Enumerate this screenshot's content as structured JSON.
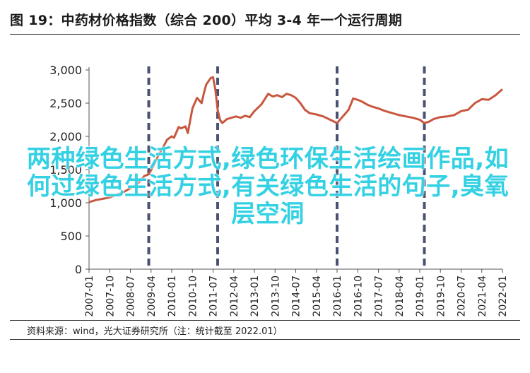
{
  "header": {
    "title": "图 19：中药材价格指数（综合 200）平均 3-4 年一个运行周期"
  },
  "footer": {
    "source": "资料来源：wind，光大证券研究所（注：统计截至 2022.01）"
  },
  "overlay": {
    "text": "两种绿色生活方式,绿色环保生活绘画作品,如何过绿色生活方式,有关绿色生活的句子,臭氧层空洞"
  },
  "chart_data": {
    "type": "line",
    "title": "图 19：中药材价格指数（综合 200）平均 3-4 年一个运行周期",
    "xlabel": "",
    "ylabel": "",
    "ylim": [
      0,
      3000
    ],
    "yticks": [
      "0",
      "500",
      "1,000",
      "1,500",
      "2,000",
      "2,500",
      "3,000"
    ],
    "ytick_values": [
      0,
      500,
      1000,
      1500,
      2000,
      2500,
      3000
    ],
    "xlim": [
      "2007-01",
      "2022-01"
    ],
    "xticks": [
      "2007-01",
      "2007-10",
      "2008-07",
      "2009-04",
      "2010-01",
      "2010-10",
      "2011-07",
      "2012-04",
      "2013-01",
      "2013-10",
      "2014-07",
      "2015-04",
      "2016-01",
      "2016-10",
      "2017-07",
      "2018-04",
      "2019-01",
      "2019-10",
      "2020-07",
      "2021-04",
      "2022-01"
    ],
    "grid": false,
    "line_color": "#c8573f",
    "cycle_marker_color": "#4a5272",
    "cycle_markers": [
      "2009-03",
      "2011-09",
      "2016-01",
      "2019-03"
    ],
    "series": [
      {
        "points": [
          [
            "2007-01",
            1010
          ],
          [
            "2007-04",
            1040
          ],
          [
            "2007-07",
            1060
          ],
          [
            "2007-10",
            1080
          ],
          [
            "2008-01",
            1120
          ],
          [
            "2008-04",
            1160
          ],
          [
            "2008-07",
            1220
          ],
          [
            "2008-10",
            1280
          ],
          [
            "2009-01",
            1400
          ],
          [
            "2009-03",
            1430
          ],
          [
            "2009-05",
            1550
          ],
          [
            "2009-07",
            1700
          ],
          [
            "2009-09",
            1820
          ],
          [
            "2009-11",
            1950
          ],
          [
            "2010-01",
            2000
          ],
          [
            "2010-02",
            1980
          ],
          [
            "2010-04",
            2140
          ],
          [
            "2010-05",
            2120
          ],
          [
            "2010-07",
            2150
          ],
          [
            "2010-08",
            2050
          ],
          [
            "2010-10",
            2420
          ],
          [
            "2010-12",
            2580
          ],
          [
            "2011-02",
            2500
          ],
          [
            "2011-03",
            2650
          ],
          [
            "2011-04",
            2780
          ],
          [
            "2011-06",
            2880
          ],
          [
            "2011-07",
            2890
          ],
          [
            "2011-08",
            2700
          ],
          [
            "2011-09",
            2400
          ],
          [
            "2011-10",
            2250
          ],
          [
            "2011-11",
            2200
          ],
          [
            "2012-01",
            2260
          ],
          [
            "2012-03",
            2280
          ],
          [
            "2012-05",
            2300
          ],
          [
            "2012-07",
            2280
          ],
          [
            "2012-09",
            2310
          ],
          [
            "2012-11",
            2290
          ],
          [
            "2013-01",
            2380
          ],
          [
            "2013-04",
            2480
          ],
          [
            "2013-07",
            2640
          ],
          [
            "2013-09",
            2600
          ],
          [
            "2013-11",
            2620
          ],
          [
            "2014-01",
            2590
          ],
          [
            "2014-03",
            2640
          ],
          [
            "2014-05",
            2620
          ],
          [
            "2014-07",
            2580
          ],
          [
            "2014-09",
            2500
          ],
          [
            "2014-11",
            2400
          ],
          [
            "2015-01",
            2350
          ],
          [
            "2015-04",
            2330
          ],
          [
            "2015-07",
            2300
          ],
          [
            "2015-10",
            2250
          ],
          [
            "2016-01",
            2200
          ],
          [
            "2016-03",
            2280
          ],
          [
            "2016-06",
            2400
          ],
          [
            "2016-08",
            2570
          ],
          [
            "2016-10",
            2550
          ],
          [
            "2016-12",
            2520
          ],
          [
            "2017-02",
            2480
          ],
          [
            "2017-04",
            2450
          ],
          [
            "2017-07",
            2420
          ],
          [
            "2017-10",
            2380
          ],
          [
            "2018-01",
            2350
          ],
          [
            "2018-04",
            2320
          ],
          [
            "2018-07",
            2300
          ],
          [
            "2018-10",
            2280
          ],
          [
            "2019-01",
            2250
          ],
          [
            "2019-03",
            2200
          ],
          [
            "2019-05",
            2220
          ],
          [
            "2019-07",
            2260
          ],
          [
            "2019-10",
            2290
          ],
          [
            "2020-01",
            2300
          ],
          [
            "2020-04",
            2320
          ],
          [
            "2020-07",
            2380
          ],
          [
            "2020-10",
            2400
          ],
          [
            "2021-01",
            2500
          ],
          [
            "2021-04",
            2560
          ],
          [
            "2021-07",
            2550
          ],
          [
            "2021-10",
            2620
          ],
          [
            "2022-01",
            2710
          ]
        ]
      }
    ]
  }
}
